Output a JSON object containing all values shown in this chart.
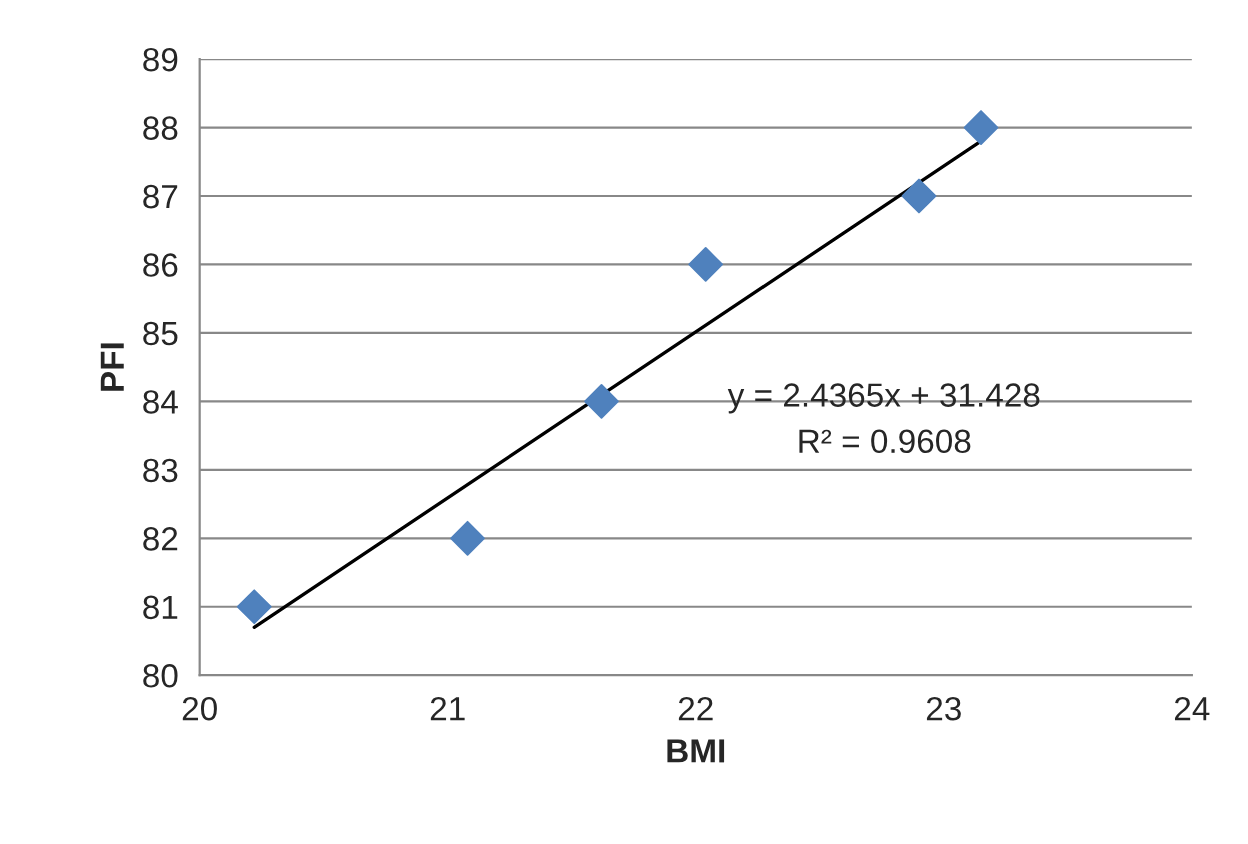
{
  "chart_data": {
    "type": "scatter",
    "xlabel": "BMI",
    "ylabel": "PFI",
    "xlim": [
      20,
      24
    ],
    "xticks": [
      20,
      21,
      22,
      23,
      24
    ],
    "ylim": [
      80,
      89
    ],
    "yticks": [
      80,
      81,
      82,
      83,
      84,
      85,
      86,
      87,
      88,
      89
    ],
    "grid": "y",
    "legend": false,
    "series": [
      {
        "marker": "diamond",
        "color": "#4f81bd",
        "x": [
          20.22,
          21.08,
          21.62,
          22.04,
          22.9,
          23.15
        ],
        "values": [
          81,
          82,
          84,
          86,
          87,
          88
        ]
      },
      {
        "type": "line",
        "marker": "none",
        "color": "#000000",
        "x": [
          20.22,
          23.15
        ],
        "values": [
          80.7,
          87.8
        ]
      }
    ],
    "annotations": [
      "y = 2.4365x + 31.428",
      "R² = 0.9608"
    ]
  }
}
